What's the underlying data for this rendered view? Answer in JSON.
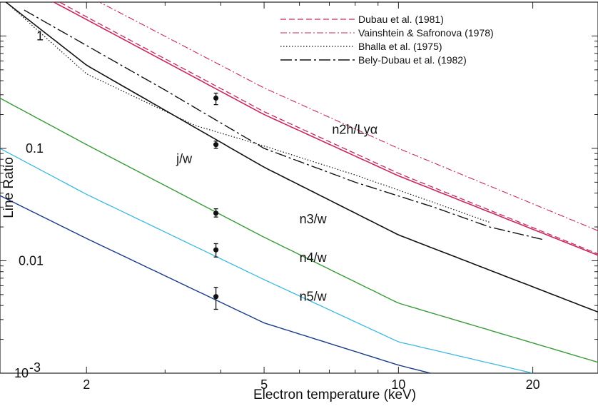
{
  "chart_data": {
    "type": "line",
    "title": "",
    "xlabel": "Electron temperature (keV)",
    "ylabel": "Line Ratio",
    "x_scale": "log",
    "y_scale": "log",
    "xlim": [
      1.28,
      28
    ],
    "ylim": [
      0.001,
      2
    ],
    "grid": false,
    "legend_position": "top-right",
    "x_ticks": [
      {
        "value": 2,
        "label": "2"
      },
      {
        "value": 5,
        "label": "5"
      },
      {
        "value": 10,
        "label": "10"
      },
      {
        "value": 20,
        "label": "20"
      }
    ],
    "y_ticks": [
      {
        "value": 1,
        "label": "1"
      },
      {
        "value": 0.1,
        "label": "0.1"
      },
      {
        "value": 0.01,
        "label": "0.01"
      },
      {
        "value": 0.001,
        "label": "10",
        "sup": "-3"
      }
    ],
    "series": [
      {
        "name": "Dubau et al. (1981)",
        "color": "#c8285a",
        "dash": "8,4",
        "width": 1.3,
        "x": [
          1.28,
          2,
          5,
          10,
          28
        ],
        "y": [
          3.9,
          1.48,
          0.212,
          0.06,
          0.0115
        ]
      },
      {
        "name": "Vainshtein & Safronova (1978)",
        "color": "#c8285a",
        "dash": "9,3,2,3",
        "width": 1.1,
        "x": [
          1.28,
          2,
          5,
          10,
          28
        ],
        "y": [
          6.0,
          2.3,
          0.345,
          0.1,
          0.0185
        ]
      },
      {
        "name": "Bhalla et al. (1975)",
        "color": "#111111",
        "dash": "1.5,2.5",
        "width": 1.2,
        "x": [
          1.35,
          2,
          3.5,
          5,
          8,
          12,
          16
        ],
        "y": [
          1.85,
          0.46,
          0.16,
          0.105,
          0.058,
          0.033,
          0.022
        ]
      },
      {
        "name": "Bely-Dubau et al. (1982)",
        "color": "#111111",
        "dash": "16,4,3,4",
        "width": 1.4,
        "x": [
          1.45,
          3,
          5,
          8,
          12,
          16,
          21
        ],
        "y": [
          1.7,
          0.33,
          0.1,
          0.05,
          0.03,
          0.02,
          0.0155
        ]
      },
      {
        "name": "",
        "color": "#c8285a",
        "dash": "",
        "width": 1.6,
        "x": [
          1.28,
          2,
          5,
          10,
          28
        ],
        "y": [
          3.6,
          1.4,
          0.2,
          0.057,
          0.0112
        ]
      },
      {
        "name": "",
        "color": "#111111",
        "dash": "",
        "width": 1.6,
        "x": [
          1.28,
          2,
          5,
          10,
          28
        ],
        "y": [
          2.2,
          0.55,
          0.068,
          0.017,
          0.0035
        ]
      },
      {
        "name": "",
        "color": "#3a9a3a",
        "dash": "",
        "width": 1.4,
        "x": [
          1.28,
          2,
          5,
          10,
          28
        ],
        "y": [
          0.28,
          0.108,
          0.0162,
          0.0042,
          0.00125
        ]
      },
      {
        "name": "",
        "color": "#3fb8e0",
        "dash": "",
        "width": 1.3,
        "x": [
          1.28,
          2,
          5,
          10,
          20
        ],
        "y": [
          0.1,
          0.039,
          0.0068,
          0.0019,
          0.001
        ]
      },
      {
        "name": "",
        "color": "#1a3a8a",
        "dash": "",
        "width": 1.4,
        "x": [
          1.28,
          2,
          5,
          10,
          11.8
        ],
        "y": [
          0.038,
          0.0158,
          0.0028,
          0.00118,
          0.001
        ]
      }
    ],
    "measurements": [
      {
        "x": 3.9,
        "y": 0.28,
        "err_low": 0.245,
        "err_high": 0.31
      },
      {
        "x": 3.9,
        "y": 0.108,
        "err_low": 0.1,
        "err_high": 0.116
      },
      {
        "x": 3.9,
        "y": 0.0265,
        "err_low": 0.0245,
        "err_high": 0.029
      },
      {
        "x": 3.9,
        "y": 0.0125,
        "err_low": 0.0108,
        "err_high": 0.0142
      },
      {
        "x": 3.9,
        "y": 0.0048,
        "err_low": 0.0037,
        "err_high": 0.0058
      }
    ],
    "curve_labels": [
      {
        "text": "n2h/Ly",
        "greek": "α",
        "color": "#c8285a",
        "x": 7.1,
        "y": 0.135
      },
      {
        "text": "j/w",
        "greek": "",
        "color": "#111111",
        "x": 3.18,
        "y": 0.074
      },
      {
        "text": "n3/w",
        "greek": "",
        "color": "#111111",
        "x": 6.0,
        "y": 0.0215
      },
      {
        "text": "n4/w",
        "greek": "",
        "color": "#111111",
        "x": 6.0,
        "y": 0.0098
      },
      {
        "text": "n5/w",
        "greek": "",
        "color": "#111111",
        "x": 6.0,
        "y": 0.0044
      }
    ]
  }
}
